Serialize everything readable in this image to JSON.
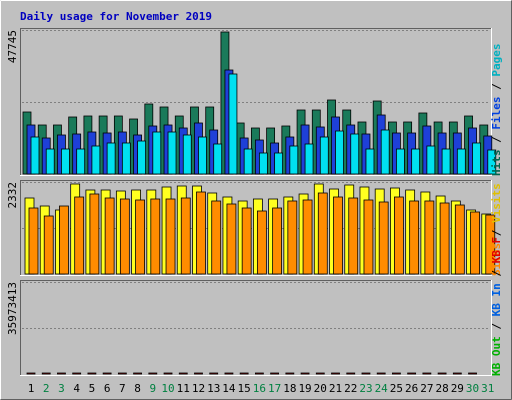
{
  "chart_data": [
    {
      "type": "bar",
      "title": "Daily usage for November 2019",
      "y_axis_max_label": "47745",
      "ylim": [
        0,
        47745
      ],
      "legend": [
        {
          "name": "Pages",
          "color": "#00b0c0"
        },
        {
          "name": "Files",
          "color": "#0040e0"
        },
        {
          "name": "Hits",
          "color": "#006650"
        }
      ],
      "legend_separator": "/",
      "categories": [
        1,
        2,
        3,
        4,
        5,
        6,
        7,
        8,
        9,
        10,
        11,
        12,
        13,
        14,
        15,
        16,
        17,
        18,
        19,
        20,
        21,
        22,
        23,
        24,
        25,
        26,
        27,
        28,
        29,
        30,
        31
      ],
      "series": [
        {
          "name": "Hits",
          "color": "#1a7a5a",
          "values": [
            21000,
            16500,
            16500,
            19000,
            19500,
            19500,
            19500,
            18500,
            23500,
            22500,
            19500,
            22500,
            22500,
            47745,
            17000,
            15500,
            15500,
            16000,
            21500,
            21500,
            25000,
            21500,
            17500,
            24500,
            17500,
            17500,
            20500,
            17500,
            17500,
            19500,
            16500
          ]
        },
        {
          "name": "Files",
          "color": "#1e40d8",
          "values": [
            16500,
            12000,
            13000,
            13500,
            14000,
            13800,
            14200,
            13200,
            16000,
            16500,
            15500,
            17000,
            14800,
            35000,
            12000,
            11500,
            10500,
            12500,
            16500,
            15800,
            19000,
            16500,
            13500,
            20000,
            13800,
            13800,
            16200,
            13800,
            13800,
            15500,
            12800
          ]
        },
        {
          "name": "Pages",
          "color": "#00e0f0",
          "values": [
            12500,
            8500,
            8500,
            8500,
            9500,
            10500,
            10500,
            11000,
            14000,
            14000,
            13000,
            12500,
            10000,
            33500,
            8500,
            7000,
            7000,
            9500,
            10000,
            12500,
            14500,
            13500,
            8500,
            14800,
            8500,
            8500,
            9500,
            8500,
            8500,
            10500,
            8000
          ]
        }
      ]
    },
    {
      "type": "bar",
      "y_axis_max_label": "2332",
      "ylim": [
        0,
        2332
      ],
      "legend": [
        {
          "name": "Visits",
          "color": "#e0c000"
        },
        {
          "name": "Sites",
          "color": "#ff8800"
        }
      ],
      "legend_separator": "/",
      "categories": [
        1,
        2,
        3,
        4,
        5,
        6,
        7,
        8,
        9,
        10,
        11,
        12,
        13,
        14,
        15,
        16,
        17,
        18,
        19,
        20,
        21,
        22,
        23,
        24,
        25,
        26,
        27,
        28,
        29,
        30,
        31
      ],
      "series": [
        {
          "name": "Visits",
          "color": "#ffff20",
          "values": [
            1980,
            1750,
            1650,
            2332,
            2180,
            2180,
            2160,
            2180,
            2180,
            2260,
            2280,
            2290,
            2100,
            2000,
            1900,
            1950,
            1950,
            2000,
            2080,
            2320,
            2200,
            2300,
            2250,
            2200,
            2240,
            2180,
            2130,
            2020,
            1900,
            1650,
            1550
          ]
        },
        {
          "name": "Sites",
          "color": "#ff8c00",
          "values": [
            1720,
            1500,
            1760,
            2000,
            2060,
            1980,
            1950,
            1910,
            1950,
            1950,
            1980,
            2120,
            1900,
            1820,
            1700,
            1620,
            1700,
            1880,
            1920,
            2100,
            2000,
            1980,
            1920,
            1870,
            1990,
            1900,
            1900,
            1830,
            1800,
            1600,
            1520
          ]
        }
      ]
    },
    {
      "type": "bar",
      "y_axis_max_label": "35973413",
      "ylim": [
        0,
        35973413
      ],
      "legend": [
        {
          "name": "KB F",
          "color": "#e00000"
        },
        {
          "name": "KB In",
          "color": "#0060e0"
        },
        {
          "name": "KB Out",
          "color": "#00b000"
        }
      ],
      "legend_separator": "/",
      "categories": [
        1,
        2,
        3,
        4,
        5,
        6,
        7,
        8,
        9,
        10,
        11,
        12,
        13,
        14,
        15,
        16,
        17,
        18,
        19,
        20,
        21,
        22,
        23,
        24,
        25,
        26,
        27,
        28,
        29,
        30,
        31
      ],
      "series": [
        {
          "name": "KB F",
          "color": "#ee1111",
          "values": [
            17500,
            7500,
            8000,
            12500,
            8000,
            10800,
            7900,
            13500,
            8600,
            8900,
            7500,
            9000,
            18500,
            28500,
            8600,
            7500,
            9900,
            17800,
            4500,
            6800,
            4300,
            4600,
            9400,
            3300,
            32800,
            35973,
            5800,
            5600,
            21000,
            7600,
            0
          ]
        }
      ]
    }
  ],
  "x_tick_weekend_color": "#008040",
  "x_tick_weekday_color": "#000000",
  "weekend_days": [
    2,
    3,
    9,
    10,
    16,
    17,
    23,
    24,
    30,
    31
  ]
}
